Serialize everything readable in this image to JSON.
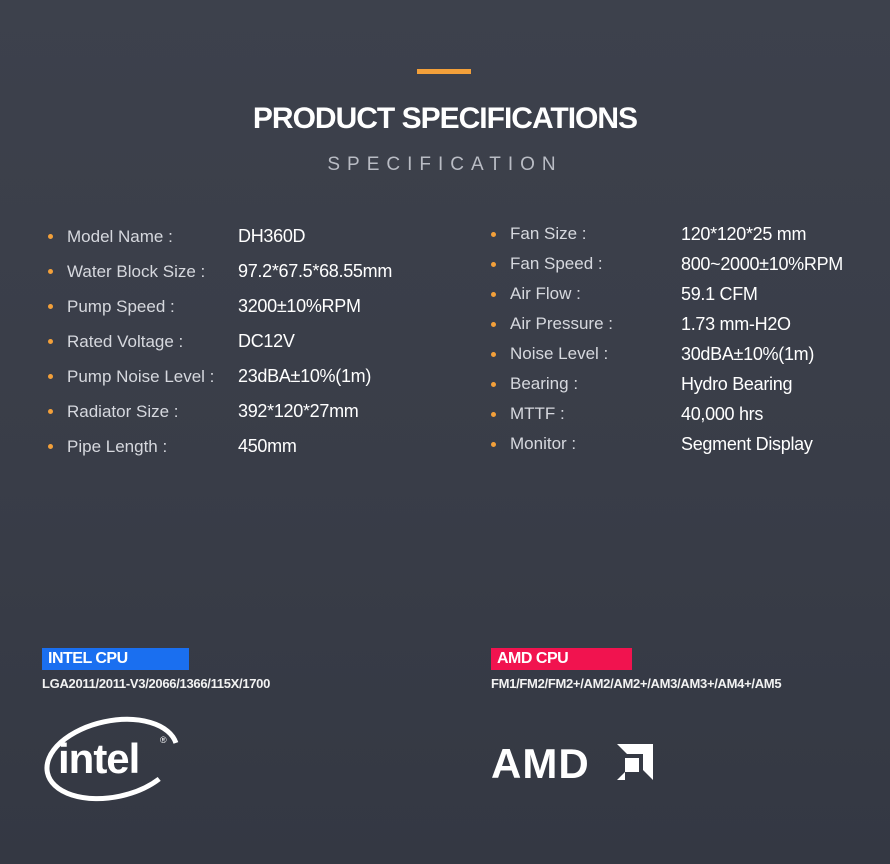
{
  "header": {
    "title": "PRODUCT SPECIFICATIONS",
    "subtitle": "SPECIFICATION",
    "accent_color": "#f3a03a"
  },
  "specs_left": [
    {
      "label": "Model Name :",
      "value": "DH360D"
    },
    {
      "label": "Water Block Size :",
      "value": "97.2*67.5*68.55mm"
    },
    {
      "label": "Pump Speed :",
      "value": "3200±10%RPM"
    },
    {
      "label": "Rated Voltage :",
      "value": "DC12V"
    },
    {
      "label": "Pump Noise Level :",
      "value": "23dBA±10%(1m)"
    },
    {
      "label": "Radiator Size :",
      "value": "392*120*27mm"
    },
    {
      "label": "Pipe Length :",
      "value": "450mm"
    }
  ],
  "specs_right": [
    {
      "label": "Fan Size :",
      "value": "120*120*25 mm"
    },
    {
      "label": "Fan Speed :",
      "value": "800~2000±10%RPM"
    },
    {
      "label": "Air Flow :",
      "value": "59.1 CFM"
    },
    {
      "label": "Air Pressure :",
      "value": "1.73 mm-H2O"
    },
    {
      "label": "Noise Level :",
      "value": "30dBA±10%(1m)"
    },
    {
      "label": "Bearing :",
      "value": "Hydro Bearing"
    },
    {
      "label": "MTTF :",
      "value": "40,000 hrs"
    },
    {
      "label": "Monitor :",
      "value": "Segment Display"
    }
  ],
  "intel": {
    "badge": "INTEL CPU",
    "sockets": "LGA2011/2011-V3/2066/1366/115X/1700",
    "badge_color": "#1a6ff0",
    "logo_text": "intel",
    "logo_mark": "®"
  },
  "amd": {
    "badge": "AMD CPU",
    "sockets": "FM1/FM2/FM2+/AM2/AM2+/AM3/AM3+/AM4+/AM5",
    "badge_color": "#f1134f",
    "logo_text": "AMD"
  }
}
